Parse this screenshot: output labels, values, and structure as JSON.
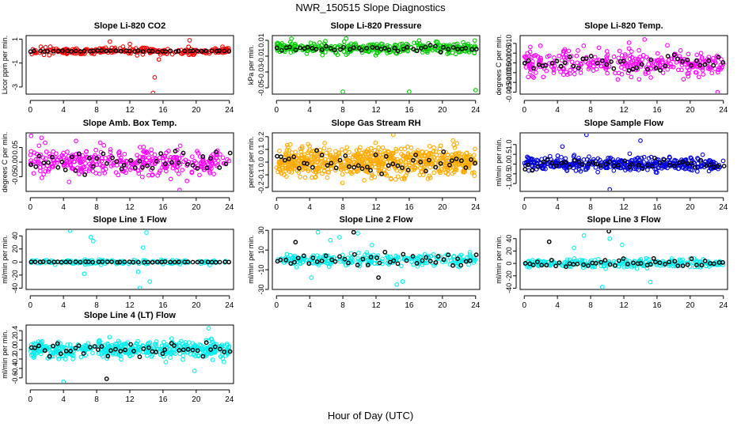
{
  "page": {
    "title": "NWR_150515  Slope Diagnostics",
    "xlabel": "Hour of Day (UTC)"
  },
  "marker_style": {
    "series_symbol": "open-circle",
    "mean_symbol": "open-circle-black"
  },
  "chart_data": [
    {
      "type": "scatter",
      "title": "Slope Li-820 CO2",
      "ylabel": "Licor ppm per min.",
      "color": "#ff0000",
      "xlim": [
        -0.5,
        24.5
      ],
      "ylim": [
        -3.6,
        1.3
      ],
      "xticks": [
        0,
        4,
        8,
        12,
        16,
        20,
        24
      ],
      "xtick_labels": [
        "0",
        "4",
        "8",
        "12",
        "16",
        "20",
        "24"
      ],
      "yticks": [
        1,
        -1,
        -3
      ],
      "ytick_labels": [
        "1",
        "-1",
        "-3"
      ],
      "series": [
        {
          "spread": 0.25,
          "center": 0.0,
          "count": 260,
          "outliers": [
            [
              14.8,
              -3.5
            ],
            [
              15.0,
              -2.2
            ],
            [
              15.5,
              -0.7
            ],
            [
              12.0,
              0.6
            ],
            [
              19.2,
              0.9
            ],
            [
              9.6,
              0.8
            ]
          ]
        },
        {
          "spread": 0.05,
          "center": 0.0,
          "count": 45,
          "outliers": []
        }
      ]
    },
    {
      "type": "scatter",
      "title": "Slope Li-820 Pressure",
      "ylabel": "kPa per min.",
      "color": "#00cc00",
      "xlim": [
        -0.5,
        24.5
      ],
      "ylim": [
        -0.058,
        0.016
      ],
      "xticks": [
        0,
        4,
        8,
        12,
        16,
        20,
        24
      ],
      "xtick_labels": [
        "0",
        "4",
        "8",
        "12",
        "16",
        "20",
        "24"
      ],
      "yticks": [
        -0.05,
        -0.03,
        -0.01,
        0.01
      ],
      "ytick_labels": [
        "-0.05",
        "-0.03",
        "-0.01",
        "0.01"
      ],
      "series": [
        {
          "spread": 0.006,
          "center": 0.0,
          "count": 330,
          "outliers": [
            [
              8.0,
              -0.055
            ],
            [
              16.0,
              -0.055
            ],
            [
              24.0,
              -0.053
            ],
            [
              1.8,
              0.012
            ]
          ]
        },
        {
          "spread": 0.003,
          "center": 0.0,
          "count": 45,
          "outliers": []
        }
      ]
    },
    {
      "type": "scatter",
      "title": "Slope Li-820 Temp.",
      "ylabel": "degrees C per min.",
      "color": "#ff00ff",
      "xlim": [
        -0.5,
        24.5
      ],
      "ylim": [
        -0.016,
        0.014
      ],
      "xticks": [
        0,
        4,
        8,
        12,
        16,
        20,
        24
      ],
      "xtick_labels": [
        "0",
        "4",
        "8",
        "12",
        "16",
        "20",
        "24"
      ],
      "yticks": [
        -0.015,
        -0.01,
        -0.005,
        0.0,
        0.005,
        0.01
      ],
      "ytick_labels": [
        "-0.015",
        "-0.010",
        "-0.005",
        "0.000",
        "0.005",
        "0.010"
      ],
      "series": [
        {
          "spread": 0.006,
          "center": 0.0,
          "count": 320,
          "outliers": [
            [
              23.3,
              -0.015
            ],
            [
              14.5,
              0.012
            ]
          ]
        },
        {
          "spread": 0.004,
          "center": 0.0,
          "count": 45,
          "outliers": []
        }
      ]
    },
    {
      "type": "scatter",
      "title": "Slope Amb. Box Temp.",
      "ylabel": "degrees C per min.",
      "color": "#ff00ff",
      "xlim": [
        -0.5,
        24.5
      ],
      "ylim": [
        -0.1,
        0.1
      ],
      "xticks": [
        0,
        4,
        8,
        12,
        16,
        20,
        24
      ],
      "xtick_labels": [
        "0",
        "4",
        "8",
        "12",
        "16",
        "20",
        "24"
      ],
      "yticks": [
        -0.05,
        0.0,
        0.05
      ],
      "ytick_labels": [
        "-0.05",
        "0.00",
        "0.05"
      ],
      "series": [
        {
          "spread": 0.045,
          "center": 0.0,
          "count": 340,
          "outliers": [
            [
              18.0,
              -0.095
            ],
            [
              0.1,
              0.09
            ]
          ]
        },
        {
          "spread": 0.035,
          "center": 0.0,
          "count": 45,
          "outliers": []
        }
      ]
    },
    {
      "type": "scatter",
      "title": "Slope Gas Stream RH",
      "ylabel": "percent per min.",
      "color": "#ffaa00",
      "xlim": [
        -0.5,
        24.5
      ],
      "ylim": [
        -0.23,
        0.23
      ],
      "xticks": [
        0,
        4,
        8,
        12,
        16,
        20,
        24
      ],
      "xtick_labels": [
        "0",
        "4",
        "8",
        "12",
        "16",
        "20",
        "24"
      ],
      "yticks": [
        -0.2,
        -0.1,
        0.0,
        0.1,
        0.2
      ],
      "ytick_labels": [
        "-0.2",
        "-0.1",
        "0.0",
        "0.1",
        "0.2"
      ],
      "series": [
        {
          "spread": 0.1,
          "center": 0.0,
          "count": 700,
          "outliers": []
        },
        {
          "spread": 0.07,
          "center": 0.0,
          "count": 45,
          "outliers": []
        }
      ]
    },
    {
      "type": "scatter",
      "title": "Slope Sample Flow",
      "ylabel": "ml/min per min.",
      "color": "#0000dd",
      "xlim": [
        -0.5,
        24.5
      ],
      "ylim": [
        -1.4,
        1.6
      ],
      "xticks": [
        0,
        4,
        8,
        12,
        16,
        20,
        24
      ],
      "xtick_labels": [
        "0",
        "4",
        "8",
        "12",
        "16",
        "20",
        "24"
      ],
      "yticks": [
        -1.0,
        -0.5,
        0.0,
        0.5,
        1.0
      ],
      "ytick_labels": [
        "-1.0",
        "-0.5",
        "0.0",
        "0.5",
        "1.0"
      ],
      "series": [
        {
          "spread": 0.3,
          "center": 0.0,
          "count": 420,
          "outliers": [
            [
              7.5,
              1.5
            ],
            [
              14.0,
              1.2
            ],
            [
              10.3,
              -1.3
            ],
            [
              4.6,
              0.9
            ]
          ]
        },
        {
          "spread": 0.25,
          "center": 0.0,
          "count": 45,
          "outliers": []
        }
      ]
    },
    {
      "type": "scatter",
      "title": "Slope Line 1 Flow",
      "ylabel": "ml/min per min.",
      "color": "#00eeee",
      "xlim": [
        -0.5,
        24.5
      ],
      "ylim": [
        -42,
        50
      ],
      "xticks": [
        0,
        4,
        8,
        12,
        16,
        20,
        24
      ],
      "xtick_labels": [
        "0",
        "4",
        "8",
        "12",
        "16",
        "20",
        "24"
      ],
      "yticks": [
        -40,
        -20,
        0,
        20,
        40
      ],
      "ytick_labels": [
        "-40",
        "-20",
        "0",
        "20",
        "40"
      ],
      "series": [
        {
          "spread": 3,
          "center": 0.0,
          "count": 180,
          "outliers": [
            [
              4.8,
              48
            ],
            [
              7.3,
              38
            ],
            [
              7.6,
              32
            ],
            [
              14.0,
              45
            ],
            [
              13.6,
              22
            ],
            [
              13.2,
              -40
            ],
            [
              14.4,
              -30
            ],
            [
              6.5,
              -18
            ],
            [
              13.0,
              -15
            ]
          ]
        },
        {
          "spread": 0.5,
          "center": 0.0,
          "count": 45,
          "outliers": []
        }
      ]
    },
    {
      "type": "scatter",
      "title": "Slope Line 2 Flow",
      "ylabel": "ml/min per min.",
      "color": "#00eeee",
      "xlim": [
        -0.5,
        24.5
      ],
      "ylim": [
        -30,
        31
      ],
      "xticks": [
        0,
        4,
        8,
        12,
        16,
        20,
        24
      ],
      "xtick_labels": [
        "0",
        "4",
        "8",
        "12",
        "16",
        "20",
        "24"
      ],
      "yticks": [
        -30,
        -10,
        10,
        30
      ],
      "ytick_labels": [
        "-30",
        "-10",
        "10",
        "30"
      ],
      "series": [
        {
          "spread": 5,
          "center": 0.0,
          "count": 260,
          "outliers": [
            [
              5.0,
              28
            ],
            [
              7.6,
              23
            ],
            [
              9.8,
              27
            ],
            [
              14.5,
              -25
            ],
            [
              15.2,
              -22
            ],
            [
              4.2,
              -18
            ],
            [
              6.5,
              20
            ],
            [
              11.5,
              15
            ]
          ]
        },
        {
          "spread": 6,
          "center": 0.0,
          "count": 45,
          "outliers": [
            [
              9.3,
              28
            ],
            [
              2.3,
              18
            ],
            [
              12.3,
              -18
            ]
          ]
        }
      ]
    },
    {
      "type": "scatter",
      "title": "Slope Line 3 Flow",
      "ylabel": "ml/min per min.",
      "color": "#00eeee",
      "xlim": [
        -0.5,
        24.5
      ],
      "ylim": [
        -42,
        55
      ],
      "xticks": [
        0,
        4,
        8,
        12,
        16,
        20,
        24
      ],
      "xtick_labels": [
        "0",
        "4",
        "8",
        "12",
        "16",
        "20",
        "24"
      ],
      "yticks": [
        -40,
        -20,
        0,
        20,
        40
      ],
      "ytick_labels": [
        "-40",
        "-20",
        "0",
        "20",
        "40"
      ],
      "series": [
        {
          "spread": 6,
          "center": 0.0,
          "count": 260,
          "outliers": [
            [
              7.2,
              45
            ],
            [
              10.3,
              40
            ],
            [
              9.4,
              -38
            ],
            [
              15.2,
              -30
            ],
            [
              6.0,
              25
            ],
            [
              11.8,
              30
            ]
          ]
        },
        {
          "spread": 6,
          "center": 0.0,
          "count": 45,
          "outliers": [
            [
              10.2,
              52
            ],
            [
              3.0,
              35
            ],
            [
              15.6,
              8
            ]
          ]
        }
      ]
    },
    {
      "type": "scatter",
      "title": "Slope Line 4 (LT) Flow",
      "ylabel": "ml/min per min.",
      "color": "#00eeee",
      "xlim": [
        -0.5,
        24.5
      ],
      "ylim": [
        -0.72,
        0.52
      ],
      "xticks": [
        0,
        4,
        8,
        12,
        16,
        20,
        24
      ],
      "xtick_labels": [
        "0",
        "4",
        "8",
        "12",
        "16",
        "20",
        "24"
      ],
      "yticks": [
        -0.6,
        -0.4,
        -0.2,
        0.0,
        0.2,
        0.4
      ],
      "ytick_labels": [
        "-0.6",
        "-0.4",
        "-0.2",
        "0.0",
        "0.2",
        "0.4"
      ],
      "series": [
        {
          "spread": 0.16,
          "center": 0.0,
          "count": 440,
          "outliers": [
            [
              4.0,
              -0.68
            ],
            [
              21.5,
              0.45
            ],
            [
              19.8,
              -0.45
            ]
          ]
        },
        {
          "spread": 0.13,
          "center": 0.0,
          "count": 45,
          "outliers": [
            [
              9.2,
              -0.62
            ]
          ]
        }
      ]
    }
  ]
}
